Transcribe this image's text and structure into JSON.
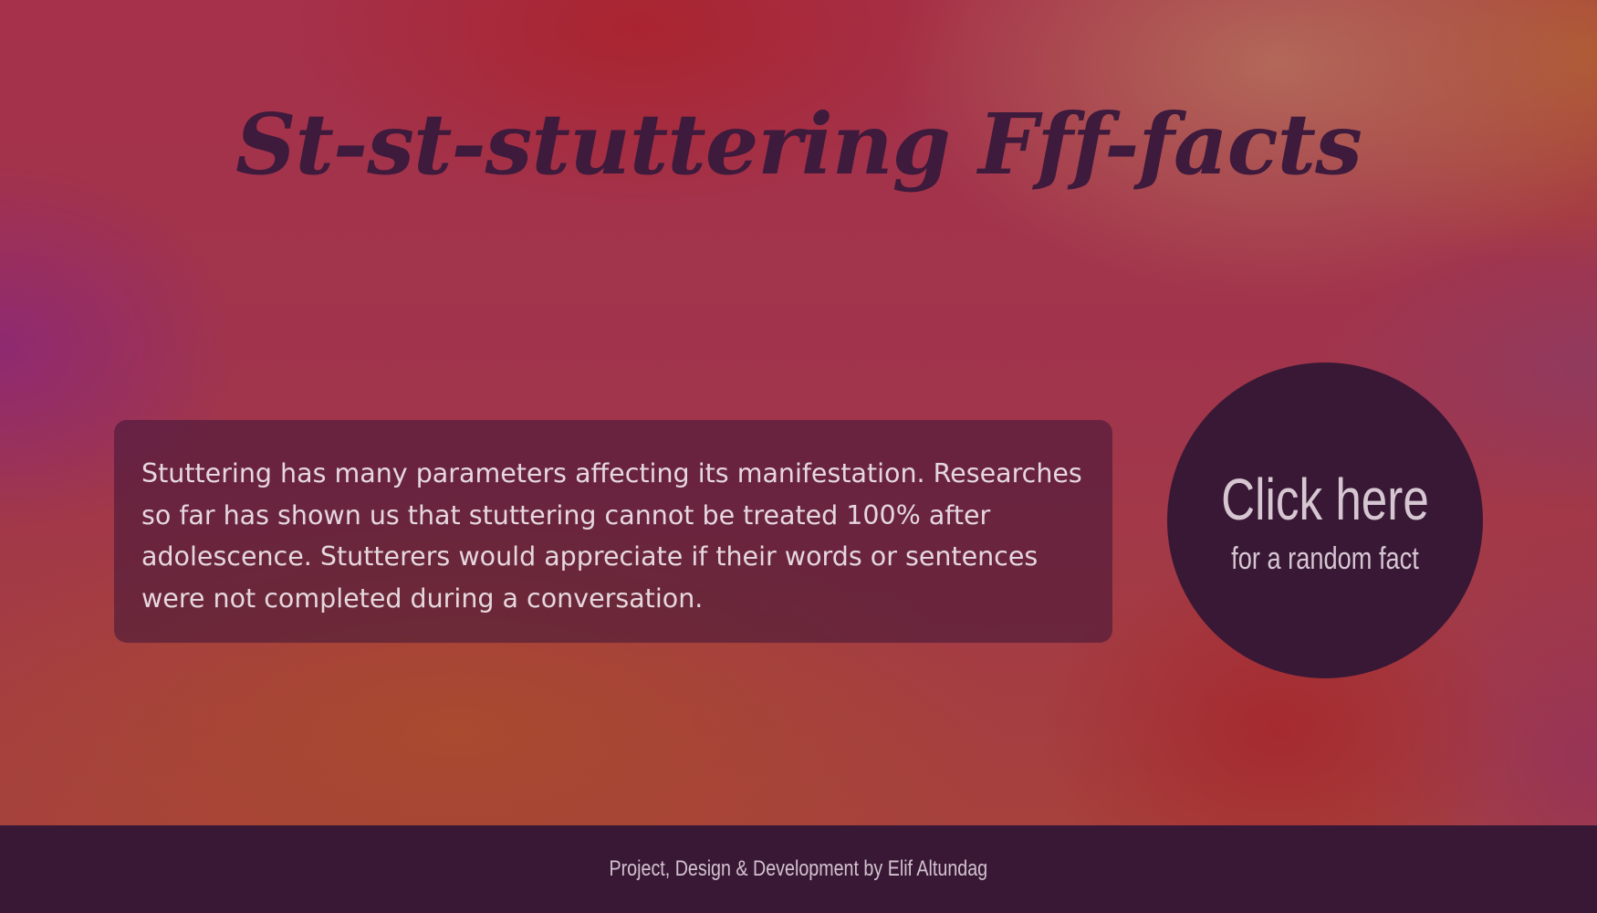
{
  "header": {
    "title": "St-st-stuttering Fff-facts"
  },
  "fact": {
    "text": "Stuttering has many parameters affecting its manifestation. Researches so far has shown us that stuttering cannot be treated 100% after adolescence. Stutterers would appreciate if their words or sentences were not completed during a conversation."
  },
  "cta": {
    "main_label": "Click here",
    "sub_label": "for a random fact"
  },
  "footer": {
    "credit": "Project, Design & Development by Elif Altundag"
  },
  "colors": {
    "title": "#3e1a3c",
    "button_bg": "#391835",
    "footer_bg": "#391835",
    "text_light": "#e6d7df"
  }
}
